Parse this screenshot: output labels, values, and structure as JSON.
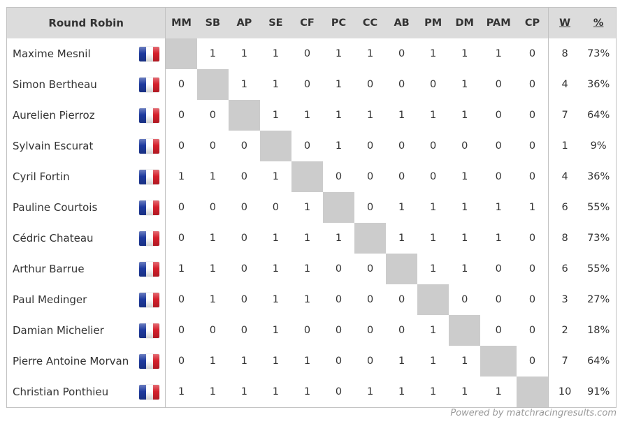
{
  "table": {
    "title": "Round Robin",
    "columns": [
      "MM",
      "SB",
      "AP",
      "SE",
      "CF",
      "PC",
      "CC",
      "AB",
      "PM",
      "DM",
      "PAM",
      "CP"
    ],
    "wins_header": "W",
    "percent_header": "%",
    "flag_colors": [
      "#1e3a9e",
      "#ffffff",
      "#d51f2b"
    ],
    "rows": [
      {
        "name": "Maxime Mesnil",
        "flag": "france-flag-icon",
        "results": [
          "",
          "1",
          "1",
          "1",
          "0",
          "1",
          "1",
          "0",
          "1",
          "1",
          "1",
          "0"
        ],
        "wins": "8",
        "percent": "73%"
      },
      {
        "name": "Simon Bertheau",
        "flag": "france-flag-icon",
        "results": [
          "0",
          "",
          "1",
          "1",
          "0",
          "1",
          "0",
          "0",
          "0",
          "1",
          "0",
          "0"
        ],
        "wins": "4",
        "percent": "36%"
      },
      {
        "name": "Aurelien Pierroz",
        "flag": "france-flag-icon",
        "results": [
          "0",
          "0",
          "",
          "1",
          "1",
          "1",
          "1",
          "1",
          "1",
          "1",
          "0",
          "0"
        ],
        "wins": "7",
        "percent": "64%"
      },
      {
        "name": "Sylvain Escurat",
        "flag": "france-flag-icon",
        "results": [
          "0",
          "0",
          "0",
          "",
          "0",
          "1",
          "0",
          "0",
          "0",
          "0",
          "0",
          "0"
        ],
        "wins": "1",
        "percent": "9%"
      },
      {
        "name": "Cyril Fortin",
        "flag": "france-flag-icon",
        "results": [
          "1",
          "1",
          "0",
          "1",
          "",
          "0",
          "0",
          "0",
          "0",
          "1",
          "0",
          "0"
        ],
        "wins": "4",
        "percent": "36%"
      },
      {
        "name": "Pauline Courtois",
        "flag": "france-flag-icon",
        "results": [
          "0",
          "0",
          "0",
          "0",
          "1",
          "",
          "0",
          "1",
          "1",
          "1",
          "1",
          "1"
        ],
        "wins": "6",
        "percent": "55%"
      },
      {
        "name": "Cédric Chateau",
        "flag": "france-flag-icon",
        "results": [
          "0",
          "1",
          "0",
          "1",
          "1",
          "1",
          "",
          "1",
          "1",
          "1",
          "1",
          "0"
        ],
        "wins": "8",
        "percent": "73%"
      },
      {
        "name": "Arthur Barrue",
        "flag": "france-flag-icon",
        "results": [
          "1",
          "1",
          "0",
          "1",
          "1",
          "0",
          "0",
          "",
          "1",
          "1",
          "0",
          "0"
        ],
        "wins": "6",
        "percent": "55%"
      },
      {
        "name": "Paul Medinger",
        "flag": "france-flag-icon",
        "results": [
          "0",
          "1",
          "0",
          "1",
          "1",
          "0",
          "0",
          "0",
          "",
          "0",
          "0",
          "0"
        ],
        "wins": "3",
        "percent": "27%"
      },
      {
        "name": "Damian Michelier",
        "flag": "france-flag-icon",
        "results": [
          "0",
          "0",
          "0",
          "1",
          "0",
          "0",
          "0",
          "0",
          "1",
          "",
          "0",
          "0"
        ],
        "wins": "2",
        "percent": "18%"
      },
      {
        "name": "Pierre Antoine Morvan",
        "flag": "france-flag-icon",
        "results": [
          "0",
          "1",
          "1",
          "1",
          "1",
          "0",
          "0",
          "1",
          "1",
          "1",
          "",
          "0"
        ],
        "wins": "7",
        "percent": "64%"
      },
      {
        "name": "Christian Ponthieu",
        "flag": "france-flag-icon",
        "results": [
          "1",
          "1",
          "1",
          "1",
          "1",
          "0",
          "1",
          "1",
          "1",
          "1",
          "1",
          ""
        ],
        "wins": "10",
        "percent": "91%"
      }
    ]
  },
  "footer": {
    "powered_by": "Powered by matchracingresults.com"
  }
}
